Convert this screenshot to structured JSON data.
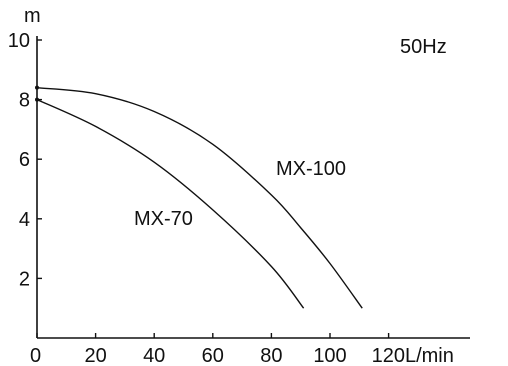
{
  "chart_data": {
    "type": "line",
    "title": "",
    "xlabel": "",
    "ylabel": "",
    "y_unit_label": "m",
    "x_unit_suffix": "L/min",
    "xlim": [
      0,
      120
    ],
    "ylim": [
      0,
      10
    ],
    "x_ticks": [
      0,
      20,
      40,
      60,
      80,
      100,
      120
    ],
    "x_tick_labels": [
      "0",
      "20",
      "40",
      "60",
      "80",
      "100",
      "120L/min"
    ],
    "y_ticks": [
      2,
      4,
      6,
      8,
      10
    ],
    "y_tick_labels": [
      "2",
      "4",
      "6",
      "8",
      "10"
    ],
    "grid": false,
    "annotations": {
      "frequency": "50Hz"
    },
    "series": [
      {
        "name": "MX-100",
        "x": [
          0,
          20,
          40,
          60,
          80,
          90,
          100,
          111
        ],
        "y": [
          8.4,
          8.2,
          7.6,
          6.5,
          4.8,
          3.7,
          2.5,
          1.0
        ]
      },
      {
        "name": "MX-70",
        "x": [
          0,
          20,
          40,
          60,
          80,
          91
        ],
        "y": [
          8.0,
          7.1,
          5.9,
          4.3,
          2.4,
          1.0
        ]
      }
    ]
  }
}
